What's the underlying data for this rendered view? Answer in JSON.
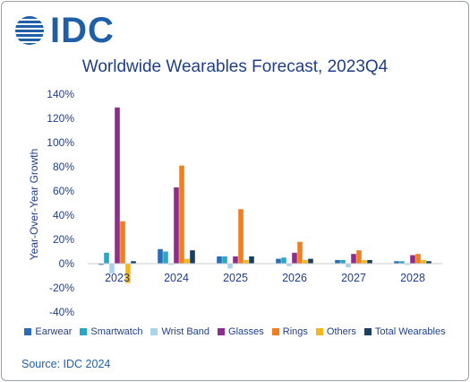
{
  "brand": {
    "logo_text": "IDC",
    "logo_icon": "globe-icon"
  },
  "footer": {
    "source": "Source: IDC 2024"
  },
  "chart_data": {
    "type": "bar",
    "title": "Worldwide Wearables Forecast, 2023Q4",
    "xlabel": "",
    "ylabel": "Year-Over-Year Growth",
    "ylim": [
      -0.4,
      1.4
    ],
    "yticks": [
      -0.4,
      -0.2,
      0,
      0.2,
      0.4,
      0.6,
      0.8,
      1.0,
      1.2,
      1.4
    ],
    "ytick_labels": [
      "-40%",
      "-20%",
      "0%",
      "20%",
      "40%",
      "60%",
      "80%",
      "100%",
      "120%",
      "140%"
    ],
    "grid": false,
    "legend_position": "bottom",
    "categories": [
      "2023",
      "2024",
      "2025",
      "2026",
      "2027",
      "2028"
    ],
    "series": [
      {
        "name": "Earwear",
        "color": "#2a6db5",
        "values": [
          -0.01,
          0.12,
          0.06,
          0.04,
          0.03,
          0.02
        ]
      },
      {
        "name": "Smartwatch",
        "color": "#2aa7c7",
        "values": [
          0.09,
          0.1,
          0.06,
          0.05,
          0.03,
          0.02
        ]
      },
      {
        "name": "Wrist Band",
        "color": "#a9d4ea",
        "values": [
          -0.08,
          -0.01,
          -0.04,
          -0.02,
          -0.03,
          -0.01
        ]
      },
      {
        "name": "Glasses",
        "color": "#8a2f8c",
        "values": [
          1.29,
          0.63,
          0.06,
          0.09,
          0.08,
          0.07
        ]
      },
      {
        "name": "Rings",
        "color": "#f07f22",
        "values": [
          0.35,
          0.81,
          0.45,
          0.18,
          0.11,
          0.08
        ]
      },
      {
        "name": "Others",
        "color": "#f4b81c",
        "values": [
          -0.16,
          0.04,
          0.03,
          0.03,
          0.03,
          0.03
        ]
      },
      {
        "name": "Total Wearables",
        "color": "#1a3f5f",
        "values": [
          0.02,
          0.11,
          0.06,
          0.04,
          0.03,
          0.02
        ]
      }
    ]
  }
}
